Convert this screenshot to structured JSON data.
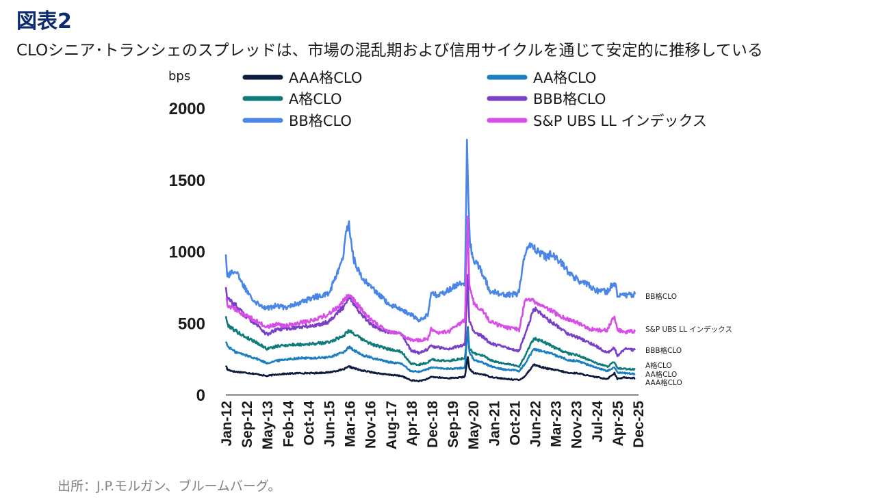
{
  "figure": {
    "title": "図表2",
    "subtitle": "CLOシニア･トランシェのスプレッドは、市場の混乱期および信用サイクルを通じて安定的に推移している",
    "source": "出所：J.P.モルガン、ブルームバーグ。"
  },
  "chart_data": {
    "type": "line",
    "title": "",
    "ylabel": "bps",
    "xlabel": "",
    "ylim": [
      0,
      2000
    ],
    "yticks": [
      0,
      500,
      1000,
      1500,
      2000
    ],
    "grid": false,
    "legend_position": "top",
    "x_tick_labels": [
      "Jan-12",
      "Sep-12",
      "May-13",
      "Feb-14",
      "Oct-14",
      "Jun-15",
      "Mar-16",
      "Nov-16",
      "Aug-17",
      "Apr-18",
      "Dec-18",
      "Sep-19",
      "May-20",
      "Jan-21",
      "Oct-21",
      "Jun-22",
      "Mar-23",
      "Nov-23",
      "Jul-24",
      "Apr-25",
      "Dec-25"
    ],
    "series": [
      {
        "name": "AAA格CLO",
        "end_label": "AAA格CLO",
        "color": "#0d1b3e",
        "t": [
          2012.0,
          2012.05,
          2012.3,
          2012.6,
          2013.0,
          2013.4,
          2013.7,
          2014.0,
          2014.5,
          2015.0,
          2015.5,
          2016.0,
          2016.2,
          2016.6,
          2017.0,
          2017.5,
          2018.0,
          2018.3,
          2018.6,
          2018.9,
          2019.0,
          2019.2,
          2019.6,
          2020.0,
          2020.15,
          2020.25,
          2020.3,
          2020.45,
          2020.8,
          2021.0,
          2021.5,
          2021.9,
          2022.0,
          2022.2,
          2022.5,
          2022.8,
          2023.0,
          2023.3,
          2023.7,
          2024.0,
          2024.4,
          2024.7,
          2025.0,
          2025.25,
          2025.35,
          2025.6,
          2025.95
        ],
        "values": [
          205,
          175,
          160,
          155,
          145,
          130,
          140,
          145,
          150,
          150,
          155,
          175,
          195,
          170,
          155,
          140,
          130,
          100,
          95,
          110,
          125,
          120,
          115,
          120,
          125,
          270,
          180,
          150,
          140,
          125,
          110,
          105,
          100,
          130,
          210,
          190,
          180,
          170,
          150,
          150,
          130,
          120,
          110,
          150,
          110,
          120,
          115
        ]
      },
      {
        "name": "AA格CLO",
        "end_label": "AA格CLO",
        "color": "#1b7ec2",
        "t": [
          2012.0,
          2012.05,
          2012.3,
          2012.6,
          2013.0,
          2013.4,
          2013.7,
          2014.0,
          2014.5,
          2015.0,
          2015.5,
          2016.0,
          2016.2,
          2016.6,
          2017.0,
          2017.5,
          2018.0,
          2018.3,
          2018.6,
          2018.9,
          2019.0,
          2019.2,
          2019.6,
          2020.0,
          2020.15,
          2020.25,
          2020.3,
          2020.45,
          2020.8,
          2021.0,
          2021.5,
          2021.9,
          2022.0,
          2022.2,
          2022.5,
          2022.8,
          2023.0,
          2023.3,
          2023.7,
          2024.0,
          2024.4,
          2024.7,
          2025.0,
          2025.25,
          2025.35,
          2025.6,
          2025.95
        ],
        "values": [
          375,
          340,
          300,
          280,
          255,
          220,
          235,
          245,
          255,
          255,
          260,
          295,
          330,
          280,
          255,
          230,
          215,
          165,
          160,
          180,
          190,
          185,
          180,
          185,
          190,
          460,
          300,
          245,
          220,
          200,
          175,
          170,
          165,
          215,
          320,
          300,
          290,
          270,
          240,
          235,
          205,
          185,
          165,
          195,
          155,
          150,
          145
        ]
      },
      {
        "name": "A格CLO",
        "end_label": "A格CLO",
        "color": "#0f7a7a",
        "t": [
          2012.0,
          2012.05,
          2012.3,
          2012.6,
          2013.0,
          2013.4,
          2013.7,
          2014.0,
          2014.5,
          2015.0,
          2015.5,
          2016.0,
          2016.2,
          2016.6,
          2017.0,
          2017.5,
          2018.0,
          2018.3,
          2018.6,
          2018.9,
          2019.0,
          2019.2,
          2019.6,
          2020.0,
          2020.15,
          2020.25,
          2020.3,
          2020.45,
          2020.8,
          2021.0,
          2021.5,
          2021.9,
          2022.0,
          2022.2,
          2022.5,
          2022.8,
          2023.0,
          2023.3,
          2023.7,
          2024.0,
          2024.4,
          2024.7,
          2025.0,
          2025.25,
          2025.35,
          2025.6,
          2025.95
        ],
        "values": [
          555,
          490,
          450,
          410,
          370,
          320,
          335,
          345,
          350,
          355,
          365,
          410,
          450,
          390,
          350,
          320,
          300,
          215,
          210,
          225,
          245,
          240,
          235,
          250,
          255,
          470,
          320,
          290,
          270,
          240,
          215,
          205,
          195,
          270,
          395,
          370,
          350,
          320,
          285,
          275,
          240,
          215,
          195,
          230,
          185,
          180,
          175
        ]
      },
      {
        "name": "BBB格CLO",
        "end_label": "BBB格CLO",
        "color": "#7a3fc8",
        "t": [
          2012.0,
          2012.05,
          2012.3,
          2012.6,
          2013.0,
          2013.4,
          2013.7,
          2014.0,
          2014.5,
          2015.0,
          2015.5,
          2016.0,
          2016.2,
          2016.6,
          2017.0,
          2017.5,
          2018.0,
          2018.3,
          2018.6,
          2018.9,
          2019.0,
          2019.2,
          2019.6,
          2020.0,
          2020.15,
          2020.25,
          2020.3,
          2020.45,
          2020.8,
          2021.0,
          2021.5,
          2021.9,
          2022.0,
          2022.2,
          2022.5,
          2022.8,
          2023.0,
          2023.3,
          2023.7,
          2024.0,
          2024.4,
          2024.7,
          2025.0,
          2025.25,
          2025.35,
          2025.6,
          2025.95
        ],
        "values": [
          760,
          670,
          630,
          560,
          500,
          420,
          450,
          460,
          470,
          480,
          510,
          610,
          690,
          560,
          480,
          440,
          420,
          310,
          290,
          320,
          340,
          330,
          320,
          340,
          350,
          820,
          520,
          440,
          400,
          360,
          330,
          310,
          305,
          420,
          600,
          560,
          520,
          480,
          420,
          400,
          360,
          330,
          290,
          330,
          270,
          320,
          310
        ]
      },
      {
        "name": "BB格CLO",
        "end_label": "BB格CLO",
        "color": "#4a86e8",
        "t": [
          2012.0,
          2012.05,
          2012.3,
          2012.6,
          2013.0,
          2013.4,
          2013.7,
          2014.0,
          2014.5,
          2015.0,
          2015.5,
          2016.0,
          2016.1,
          2016.2,
          2016.35,
          2016.6,
          2017.0,
          2017.5,
          2018.0,
          2018.3,
          2018.6,
          2018.9,
          2019.0,
          2019.2,
          2019.6,
          2020.0,
          2020.15,
          2020.22,
          2020.27,
          2020.32,
          2020.45,
          2020.8,
          2021.0,
          2021.5,
          2021.9,
          2022.0,
          2022.15,
          2022.35,
          2022.6,
          2022.9,
          2023.1,
          2023.4,
          2023.7,
          2024.0,
          2024.4,
          2024.7,
          2025.0,
          2025.25,
          2025.35,
          2025.6,
          2025.95
        ],
        "values": [
          990,
          830,
          870,
          760,
          650,
          600,
          620,
          610,
          640,
          680,
          700,
          950,
          1130,
          1190,
          950,
          830,
          740,
          640,
          590,
          560,
          520,
          560,
          720,
          690,
          730,
          780,
          760,
          1750,
          1400,
          1050,
          950,
          830,
          720,
          700,
          700,
          720,
          950,
          1040,
          1010,
          960,
          980,
          930,
          850,
          800,
          760,
          720,
          720,
          790,
          700,
          690,
          700
        ]
      },
      {
        "name": "S&P UBS LL インデックス",
        "end_label": "S&P UBS LL インデックス",
        "color": "#d84ce8",
        "t": [
          2012.0,
          2012.05,
          2012.3,
          2012.6,
          2013.0,
          2013.4,
          2013.7,
          2014.0,
          2014.5,
          2015.0,
          2015.5,
          2016.0,
          2016.2,
          2016.6,
          2017.0,
          2017.5,
          2018.0,
          2018.3,
          2018.6,
          2018.9,
          2019.0,
          2019.2,
          2019.6,
          2020.0,
          2020.15,
          2020.25,
          2020.3,
          2020.45,
          2020.8,
          2021.0,
          2021.5,
          2021.9,
          2022.0,
          2022.2,
          2022.5,
          2022.8,
          2023.0,
          2023.3,
          2023.7,
          2024.0,
          2024.4,
          2024.7,
          2025.0,
          2025.25,
          2025.35,
          2025.6,
          2025.95
        ],
        "values": [
          680,
          630,
          600,
          560,
          520,
          470,
          490,
          480,
          500,
          520,
          560,
          650,
          700,
          600,
          510,
          450,
          420,
          380,
          380,
          390,
          460,
          430,
          440,
          500,
          520,
          1250,
          770,
          640,
          580,
          510,
          470,
          460,
          450,
          660,
          650,
          620,
          600,
          560,
          520,
          500,
          460,
          450,
          450,
          550,
          450,
          440,
          440
        ]
      }
    ]
  }
}
